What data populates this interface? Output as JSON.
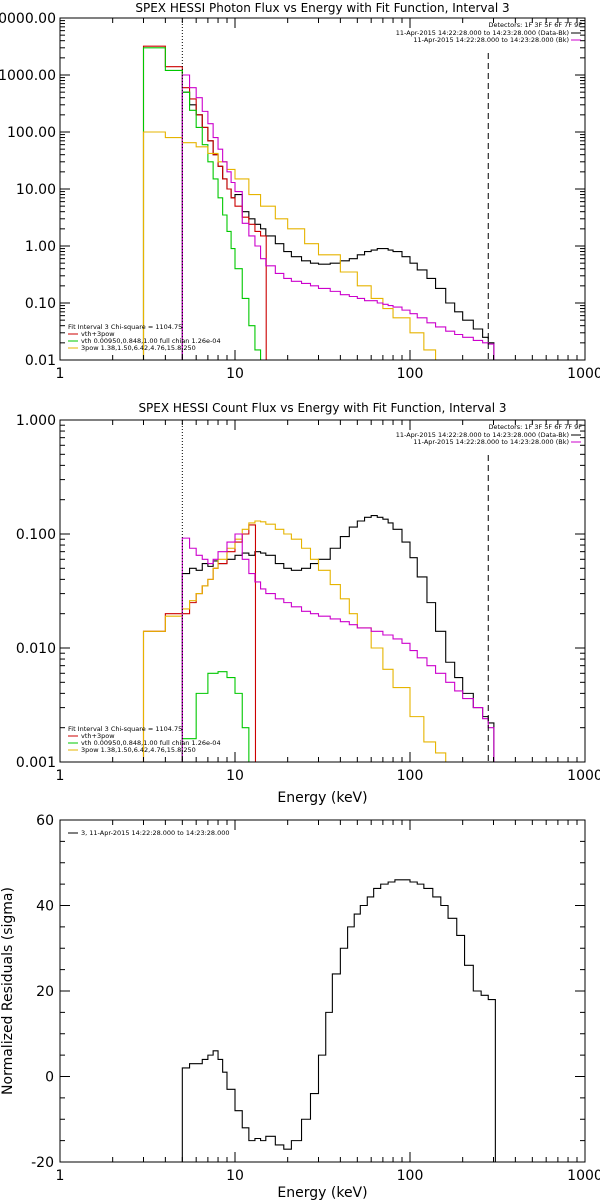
{
  "colors": {
    "data": "#000000",
    "vth_3pow": "#cc0000",
    "vth": "#00c800",
    "pow": "#e6b400",
    "background": "#cc00cc"
  },
  "chart_data": [
    {
      "type": "line",
      "title": "SPEX HESSI Photon Flux vs Energy with Fit Function, Interval 3",
      "xlabel": "",
      "ylabel": "",
      "xscale": "log",
      "yscale": "log",
      "xlim": [
        1,
        1000
      ],
      "ylim": [
        0.01,
        10000
      ],
      "xtick_labels": [
        "1",
        "10",
        "100",
        "1000"
      ],
      "ytick_labels": [
        "0.01",
        "0.10",
        "1.00",
        "10.00",
        "100.00",
        "1000.00",
        "10000.00"
      ],
      "detectors": "Detectors: 1F 3F 5F 6F 7F 9F",
      "legend_right": [
        {
          "label": "11-Apr-2015 14:22:28.000 to 14:23:28.000 (Data-Bk)",
          "color": "#000000"
        },
        {
          "label": "11-Apr-2015 14:22:28.000 to 14:23:28.000 (Bk)",
          "color": "#cc00cc"
        }
      ],
      "legend_left": [
        {
          "label": "Fit Interval 3   Chi-square = 1104.75",
          "color": ""
        },
        {
          "label": "vth+3pow",
          "color": "#cc0000"
        },
        {
          "label": "vth 0.00950,0.848,1.00  full chian 1.26e-04",
          "color": "#00c800"
        },
        {
          "label": "3pow 1.38,1.50,6.42,4.76,15.8,250",
          "color": "#e6b400"
        }
      ],
      "vline_dotted": 5,
      "vline_dashed": 280,
      "series": [
        {
          "color": "#000000",
          "x": [
            5,
            5.5,
            6,
            6.5,
            7,
            7.5,
            8,
            8.5,
            9,
            9.5,
            10,
            11,
            12,
            13,
            14,
            15,
            17,
            19,
            21,
            24,
            27,
            30,
            35,
            40,
            45,
            50,
            55,
            60,
            65,
            70,
            75,
            80,
            90,
            100,
            110,
            125,
            140,
            160,
            180,
            200,
            230,
            260,
            280
          ],
          "values": [
            500,
            300,
            200,
            120,
            70,
            40,
            25,
            15,
            10,
            7,
            8,
            4,
            3,
            2.4,
            2,
            1.5,
            1.1,
            0.8,
            0.65,
            0.55,
            0.5,
            0.48,
            0.5,
            0.55,
            0.6,
            0.7,
            0.8,
            0.85,
            0.9,
            0.9,
            0.85,
            0.8,
            0.65,
            0.5,
            0.38,
            0.27,
            0.18,
            0.1,
            0.07,
            0.05,
            0.035,
            0.025,
            0.02
          ]
        },
        {
          "color": "#cc0000",
          "x": [
            3,
            4,
            5,
            5.5,
            6,
            6.5,
            7,
            7.5,
            8,
            8.5,
            9,
            9.5,
            10,
            11,
            12,
            13,
            14
          ],
          "values": [
            3200,
            1400,
            600,
            380,
            200,
            120,
            70,
            40,
            25,
            15,
            10,
            7,
            5,
            3.2,
            2.4,
            1.8,
            1.5
          ]
        },
        {
          "color": "#00c800",
          "x": [
            3,
            4,
            5,
            5.5,
            6,
            6.5,
            7,
            7.5,
            8,
            8.5,
            9,
            9.5,
            10,
            11,
            12,
            13,
            14
          ],
          "values": [
            3000,
            1200,
            500,
            240,
            120,
            60,
            30,
            15,
            7,
            3.5,
            1.8,
            0.9,
            0.4,
            0.12,
            0.04,
            0.015,
            0.008
          ]
        },
        {
          "color": "#e6b400",
          "x": [
            3,
            4,
            5,
            6,
            7,
            8,
            9,
            10,
            12,
            14,
            17,
            20,
            25,
            30,
            40,
            50,
            60,
            70,
            80,
            100,
            120,
            140
          ],
          "values": [
            100,
            80,
            65,
            55,
            42,
            30,
            22,
            15,
            8,
            5,
            3,
            2,
            1.1,
            0.7,
            0.35,
            0.2,
            0.12,
            0.08,
            0.055,
            0.03,
            0.015,
            0.01
          ]
        },
        {
          "color": "#cc00cc",
          "x": [
            5,
            5.5,
            6,
            6.5,
            7,
            7.5,
            8,
            8.5,
            9,
            9.5,
            10,
            11,
            12,
            13,
            14,
            15,
            17,
            19,
            21,
            24,
            27,
            30,
            35,
            40,
            45,
            50,
            55,
            60,
            65,
            70,
            75,
            80,
            90,
            100,
            110,
            125,
            140,
            160,
            180,
            200,
            230,
            260,
            280
          ],
          "values": [
            1000,
            600,
            400,
            230,
            140,
            80,
            50,
            30,
            20,
            13,
            9,
            2.5,
            1.5,
            1.0,
            0.6,
            0.45,
            0.33,
            0.27,
            0.24,
            0.22,
            0.2,
            0.18,
            0.16,
            0.14,
            0.13,
            0.12,
            0.11,
            0.11,
            0.1,
            0.095,
            0.09,
            0.085,
            0.075,
            0.065,
            0.055,
            0.045,
            0.038,
            0.032,
            0.028,
            0.025,
            0.022,
            0.02,
            0.019
          ]
        }
      ]
    },
    {
      "type": "line",
      "title": "SPEX HESSI Count Flux vs Energy with Fit Function, Interval 3",
      "xlabel": "Energy (keV)",
      "ylabel": "",
      "xscale": "log",
      "yscale": "log",
      "xlim": [
        1,
        1000
      ],
      "ylim": [
        0.001,
        1
      ],
      "xtick_labels": [
        "1",
        "10",
        "100",
        "1000"
      ],
      "ytick_labels": [
        "0.001",
        "0.010",
        "0.100",
        "1.000"
      ],
      "detectors": "Detectors: 1F 3F 5F 6F 7F 9F",
      "legend_right": [
        {
          "label": "11-Apr-2015 14:22:28.000 to 14:23:28.000 (Data-Bk)",
          "color": "#000000"
        },
        {
          "label": "11-Apr-2015 14:22:28.000 to 14:23:28.000 (Bk)",
          "color": "#cc00cc"
        }
      ],
      "legend_left": [
        {
          "label": "Fit Interval 3   Chi-square = 1104.75",
          "color": ""
        },
        {
          "label": "vth+3pow",
          "color": "#cc0000"
        },
        {
          "label": "vth 0.00950,0.848,1.00  full chian 1.26e-04",
          "color": "#00c800"
        },
        {
          "label": "3pow 1.38,1.50,6.42,4.76,15.8,250",
          "color": "#e6b400"
        }
      ],
      "vline_dotted": 5,
      "vline_dashed": 280,
      "series": [
        {
          "color": "#000000",
          "x": [
            5,
            5.5,
            6,
            6.5,
            7,
            7.5,
            8,
            9,
            10,
            11,
            12,
            13,
            14,
            15,
            17,
            19,
            21,
            24,
            27,
            30,
            35,
            40,
            45,
            50,
            55,
            60,
            65,
            70,
            75,
            80,
            90,
            100,
            110,
            125,
            140,
            160,
            180,
            200,
            230,
            260,
            280
          ],
          "values": [
            0.045,
            0.05,
            0.048,
            0.055,
            0.052,
            0.058,
            0.055,
            0.06,
            0.065,
            0.068,
            0.065,
            0.07,
            0.068,
            0.065,
            0.055,
            0.05,
            0.048,
            0.05,
            0.055,
            0.06,
            0.075,
            0.095,
            0.115,
            0.13,
            0.14,
            0.145,
            0.14,
            0.135,
            0.125,
            0.11,
            0.085,
            0.062,
            0.042,
            0.025,
            0.014,
            0.0075,
            0.0055,
            0.004,
            0.003,
            0.0025,
            0.0022
          ]
        },
        {
          "color": "#cc0000",
          "x": [
            3,
            4,
            5,
            5.5,
            6,
            6.5,
            7,
            7.5,
            8,
            9,
            10,
            11,
            12
          ],
          "values": [
            0.014,
            0.02,
            0.02,
            0.025,
            0.03,
            0.035,
            0.04,
            0.05,
            0.055,
            0.07,
            0.085,
            0.1,
            0.12
          ]
        },
        {
          "color": "#00c800",
          "x": [
            5,
            6,
            7,
            8,
            9,
            10,
            11,
            12
          ],
          "values": [
            0.0016,
            0.004,
            0.006,
            0.0062,
            0.0055,
            0.004,
            0.002,
            0.0009
          ]
        },
        {
          "color": "#e6b400",
          "x": [
            3,
            4,
            5,
            5.5,
            6,
            6.5,
            7,
            7.5,
            8,
            9,
            10,
            11,
            12,
            13,
            14,
            15,
            17,
            19,
            21,
            24,
            27,
            30,
            35,
            40,
            45,
            50,
            60,
            70,
            80,
            100,
            120,
            140,
            160
          ],
          "values": [
            0.014,
            0.019,
            0.022,
            0.026,
            0.03,
            0.035,
            0.04,
            0.05,
            0.06,
            0.075,
            0.09,
            0.11,
            0.125,
            0.13,
            0.128,
            0.122,
            0.11,
            0.1,
            0.09,
            0.075,
            0.06,
            0.048,
            0.036,
            0.027,
            0.02,
            0.015,
            0.01,
            0.0065,
            0.0045,
            0.0025,
            0.0015,
            0.0012,
            0.001
          ]
        },
        {
          "color": "#cc00cc",
          "x": [
            5,
            5.5,
            6,
            6.5,
            7,
            7.5,
            8,
            9,
            10,
            11,
            12,
            13,
            14,
            15,
            17,
            19,
            21,
            24,
            27,
            30,
            35,
            40,
            45,
            50,
            55,
            60,
            65,
            70,
            80,
            90,
            100,
            110,
            125,
            140,
            160,
            180,
            200,
            230,
            260,
            280
          ],
          "values": [
            0.092,
            0.075,
            0.065,
            0.06,
            0.055,
            0.06,
            0.07,
            0.085,
            0.1,
            0.06,
            0.045,
            0.038,
            0.033,
            0.03,
            0.027,
            0.025,
            0.023,
            0.021,
            0.02,
            0.019,
            0.018,
            0.017,
            0.016,
            0.015,
            0.015,
            0.014,
            0.014,
            0.013,
            0.012,
            0.011,
            0.0095,
            0.0082,
            0.007,
            0.006,
            0.005,
            0.0042,
            0.0036,
            0.003,
            0.0024,
            0.002
          ]
        }
      ]
    },
    {
      "type": "line",
      "title": "",
      "xlabel": "Energy (keV)",
      "ylabel": "Normalized Residuals (sigma)",
      "xscale": "log",
      "yscale": "linear",
      "xlim": [
        1,
        1000
      ],
      "ylim": [
        -20,
        60
      ],
      "xtick_labels": [
        "1",
        "10",
        "100",
        "1000"
      ],
      "ytick_labels": [
        "-20",
        "0",
        "20",
        "40",
        "60"
      ],
      "legend_left": [
        {
          "label": "3, 11-Apr-2015 14:22:28.000 to 14:23:28.000",
          "color": "#000000"
        }
      ],
      "series": [
        {
          "color": "#000000",
          "x": [
            5,
            5.5,
            6,
            6.5,
            7,
            7.5,
            8,
            8.5,
            9,
            10,
            11,
            12,
            13,
            14,
            15,
            17,
            19,
            21,
            24,
            27,
            30,
            33,
            36,
            40,
            44,
            48,
            52,
            57,
            62,
            68,
            75,
            82,
            90,
            100,
            110,
            120,
            135,
            150,
            165,
            185,
            205,
            230,
            255,
            280
          ],
          "values": [
            2,
            3,
            3,
            4,
            5,
            6,
            4,
            1,
            -3,
            -8,
            -12,
            -15,
            -14.5,
            -15,
            -14,
            -16,
            -17,
            -15,
            -10,
            -4,
            5,
            15,
            24,
            30,
            35,
            38,
            40,
            42,
            44,
            45,
            45.5,
            46,
            46,
            45.5,
            45,
            44,
            42,
            40,
            37,
            33,
            26,
            20,
            19,
            18
          ]
        }
      ]
    }
  ]
}
